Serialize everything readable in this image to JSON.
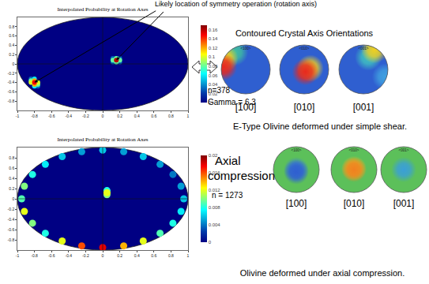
{
  "annotation": "Likely location of symmetry operation (rotation axis)",
  "chart_data": [
    {
      "type": "heatmap",
      "title": "Interpolated Probability at Rotation Axes",
      "xlim": [
        -1,
        1
      ],
      "ylim": [
        -1,
        1
      ],
      "xticks": [
        -1,
        -0.8,
        -0.6,
        -0.4,
        -0.2,
        0,
        0.2,
        0.4,
        0.6,
        0.8,
        1
      ],
      "yticks": [
        -0.8,
        -0.6,
        -0.4,
        -0.2,
        0,
        0.2,
        0.4,
        0.6,
        0.8
      ],
      "colorbar": {
        "range": [
          0,
          0.17
        ],
        "ticks": [
          0,
          0.02,
          0.04,
          0.06,
          0.08,
          0.1,
          0.12,
          0.14,
          0.16
        ]
      },
      "cells": {
        "x": [
          0.12,
          0.2,
          0.12,
          0.2,
          -0.84,
          -0.76,
          -0.8,
          -0.8,
          0.16,
          0.12,
          0.2,
          0.16,
          -0.84,
          -0.76,
          -0.84,
          -0.76,
          -0.8,
          -0.8,
          -0.8,
          0.16
        ],
        "y": [
          0.04,
          0.04,
          0.12,
          0.12,
          -0.32,
          -0.48,
          -0.32,
          -0.48,
          0.04,
          0.08,
          0.08,
          0.12,
          -0.36,
          -0.44,
          -0.4,
          -0.4,
          -0.36,
          -0.44,
          -0.4,
          0.08
        ],
        "values": [
          0.03,
          0.03,
          0.03,
          0.03,
          0.03,
          0.03,
          0.06,
          0.06,
          0.08,
          0.08,
          0.08,
          0.08,
          0.08,
          0.08,
          0.1,
          0.1,
          0.12,
          0.12,
          0.15,
          0.16
        ]
      },
      "rotation_axes": [
        {
          "x": 0.16,
          "y": 0.08
        },
        {
          "x": -0.8,
          "y": -0.4
        }
      ]
    },
    {
      "type": "heatmap",
      "title": "Interpolated Probability at Rotation Axes",
      "xlim": [
        -1,
        1
      ],
      "ylim": [
        -1,
        1
      ],
      "xticks": [
        -1,
        -0.8,
        -0.6,
        -0.4,
        -0.2,
        0,
        0.2,
        0.4,
        0.6,
        0.8,
        1
      ],
      "yticks": [
        -0.8,
        -0.6,
        -0.4,
        -0.2,
        0,
        0.2,
        0.4,
        0.6,
        0.8
      ],
      "colorbar": {
        "range": [
          0,
          0.02
        ],
        "ticks": [
          0,
          0.004,
          0.008,
          0.012,
          0.016,
          0.02
        ]
      },
      "cells": {
        "x": [
          0.95,
          0.918,
          0.823,
          0.672,
          0.475,
          0.246,
          0,
          -0.246,
          -0.475,
          -0.672,
          -0.823,
          -0.918,
          -0.95,
          -0.918,
          -0.823,
          -0.672,
          -0.475,
          -0.246,
          0,
          0.246,
          0.475,
          0.672,
          0.823,
          0.918,
          0.05,
          0.05,
          0.05
        ],
        "y": [
          0,
          0.246,
          0.475,
          0.672,
          0.823,
          0.918,
          0.95,
          0.918,
          0.823,
          0.672,
          0.475,
          0.246,
          0,
          -0.246,
          -0.475,
          -0.672,
          -0.823,
          -0.918,
          -0.95,
          -0.918,
          -0.823,
          -0.672,
          -0.475,
          -0.246,
          0.16,
          0.08,
          0.12
        ],
        "values": [
          0.006,
          0.005,
          0.004,
          0.005,
          0.006,
          0.005,
          0.006,
          0.005,
          0.006,
          0.007,
          0.008,
          0.01,
          0.009,
          0.012,
          0.01,
          0.008,
          0.012,
          0.016,
          0.018,
          0.014,
          0.012,
          0.009,
          0.008,
          0.007,
          0.008,
          0.01,
          0.012
        ]
      }
    }
  ],
  "heading": "Contoured Crystal Axis Orientations",
  "pole_figure_rows": [
    {
      "stats": [
        "n=378",
        "Gamma = 6.3"
      ],
      "caption": "E-Type Olivine deformed under simple shear.",
      "figures": [
        {
          "axis_label": "<100>",
          "label": "[100]",
          "background": "#2f5fd0",
          "blobs": [
            {
              "x": -0.45,
              "y": 0.7,
              "color": "#3fbfa0"
            },
            {
              "x": -0.85,
              "y": 0.45,
              "color": "#f0d020"
            },
            {
              "x": -0.9,
              "y": 0.1,
              "color": "#e8281e"
            }
          ]
        },
        {
          "axis_label": "<010>",
          "label": "[010]",
          "background": "#2f5fd0",
          "blobs": [
            {
              "x": 0.25,
              "y": 0.05,
              "color": "#f0d020"
            },
            {
              "x": 0.05,
              "y": -0.1,
              "color": "#e8281e"
            }
          ]
        },
        {
          "axis_label": "<001>",
          "label": "[001]",
          "background": "#2f5fd0",
          "blobs": [
            {
              "x": 0.9,
              "y": -0.3,
              "color": "#40a0e0"
            },
            {
              "x": 0.2,
              "y": 0.5,
              "color": "#40c0c0"
            },
            {
              "x": 0.45,
              "y": 0.8,
              "color": "#f0d020"
            }
          ]
        }
      ]
    },
    {
      "condition": [
        "Axial",
        "compression"
      ],
      "stats": [
        "n = 1273"
      ],
      "caption": "Olivine deformed under axial compression.",
      "figures": [
        {
          "axis_label": "<100>",
          "label": "[100]",
          "background": "#5cc05a",
          "blobs": [
            {
              "x": 0,
              "y": 0,
              "color": "#3a7fd8"
            },
            {
              "x": 0,
              "y": -0.1,
              "color": "#2f5fd0"
            }
          ]
        },
        {
          "axis_label": "<010>",
          "label": "[010]",
          "background": "#5cc05a",
          "blobs": [
            {
              "x": 0,
              "y": 0.05,
              "color": "#f0c020"
            },
            {
              "x": 0,
              "y": 0,
              "color": "#f08020"
            }
          ]
        },
        {
          "axis_label": "<001>",
          "label": "[001]",
          "background": "#5cc05a",
          "blobs": [
            {
              "x": 0,
              "y": 0,
              "color": "#3a9fd8"
            }
          ]
        }
      ]
    }
  ]
}
